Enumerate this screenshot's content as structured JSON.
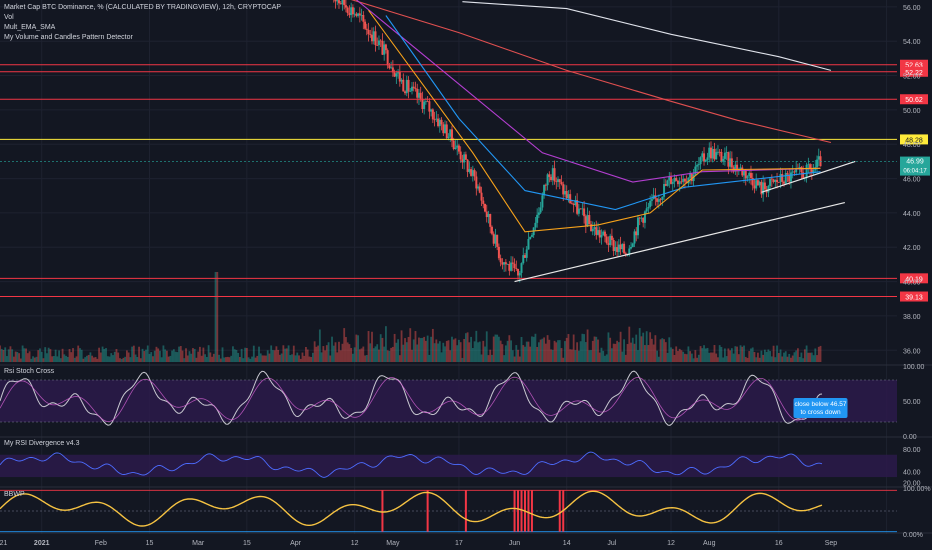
{
  "header": {
    "symbol_line": "Market Cap BTC Dominance, % (CALCULATED BY TRADINGVIEW), 12h, CRYPTOCAP",
    "indicators": [
      "Vol",
      "Mult_EMA_SMA",
      "My Volume and Candles Pattern Detector"
    ]
  },
  "colors": {
    "background": "#131722",
    "grid": "#1e2230",
    "up": "#26a69a",
    "down": "#ef5350",
    "ema_orange": "#f7a21b",
    "ema_blue": "#2196f3",
    "ema_purple": "#b33ed0",
    "sma_red": "#e05050",
    "sma_white": "#e0e3eb",
    "level_red": "#f23645",
    "level_yellow": "#ffeb3b",
    "rsi_line": "#4d6cff",
    "stoch_line": "#c8c8d0",
    "panel_fill": "#2b1a4a"
  },
  "chart_data": [
    {
      "type": "candlestick",
      "title": "Market Cap BTC Dominance, % (CALCULATED BY TRADINGVIEW), 12h, CRYPTOCAP",
      "price_axis": [
        "56.00",
        "54.00",
        "52.00",
        "50.00",
        "48.00",
        "46.00",
        "44.00",
        "42.00",
        "40.00",
        "38.00",
        "36.00"
      ],
      "ylim": [
        35.2,
        56.4
      ],
      "time_axis": [
        "21",
        "2021",
        "Feb",
        "15",
        "Mar",
        "15",
        "Apr",
        "12",
        "May",
        "17",
        "Jun",
        "14",
        "Jul",
        "12",
        "Aug",
        "16",
        "Sep"
      ],
      "x_visible_start": "2020-12-20",
      "x_visible_end": "2021-09-04",
      "last_close": 46.99,
      "countdown": "06:04:17",
      "price_series_anchors": [
        [
          "2021-03-25",
          56.8
        ],
        [
          "2021-04-01",
          55.7
        ],
        [
          "2021-04-08",
          53.9
        ],
        [
          "2021-04-15",
          51.5
        ],
        [
          "2021-04-22",
          50.2
        ],
        [
          "2021-04-29",
          48.3
        ],
        [
          "2021-05-06",
          45.8
        ],
        [
          "2021-05-13",
          41.4
        ],
        [
          "2021-05-18",
          40.3
        ],
        [
          "2021-05-21",
          42.5
        ],
        [
          "2021-05-24",
          44.2
        ],
        [
          "2021-05-27",
          46.5
        ],
        [
          "2021-06-01",
          45.0
        ],
        [
          "2021-06-08",
          43.2
        ],
        [
          "2021-06-15",
          42.0
        ],
        [
          "2021-06-18",
          41.7
        ],
        [
          "2021-06-22",
          43.6
        ],
        [
          "2021-06-27",
          44.9
        ],
        [
          "2021-07-01",
          46.0
        ],
        [
          "2021-07-07",
          46.2
        ],
        [
          "2021-07-12",
          47.6
        ],
        [
          "2021-07-17",
          47.1
        ],
        [
          "2021-07-24",
          46.1
        ],
        [
          "2021-07-27",
          45.4
        ],
        [
          "2021-08-01",
          45.9
        ],
        [
          "2021-08-06",
          46.2
        ],
        [
          "2021-08-11",
          46.5
        ],
        [
          "2021-08-13",
          46.99
        ]
      ],
      "horizontal_levels": [
        {
          "value": 52.63,
          "label": "52.63",
          "color": "#f23645"
        },
        {
          "value": 52.22,
          "label": "52.22",
          "color": "#f23645"
        },
        {
          "value": 50.62,
          "label": "50.62",
          "color": "#f23645"
        },
        {
          "value": 48.28,
          "label": "48.28",
          "color": "#ffeb3b"
        },
        {
          "value": 40.19,
          "label": "40.19",
          "color": "#f23645"
        },
        {
          "value": 39.13,
          "label": "39.13",
          "color": "#f23645"
        }
      ],
      "trendlines": [
        {
          "from": [
            "2021-05-17",
            40.0
          ],
          "to": [
            "2021-08-20",
            44.6
          ]
        },
        {
          "from": [
            "2021-07-27",
            45.2
          ],
          "to": [
            "2021-08-23",
            47.0
          ]
        }
      ],
      "moving_averages": [
        {
          "color": "#e0e3eb",
          "points": [
            [
              "2021-05-02",
              56.3
            ],
            [
              "2021-06-01",
              55.9
            ],
            [
              "2021-07-01",
              54.4
            ],
            [
              "2021-08-01",
              53.1
            ],
            [
              "2021-08-16",
              52.3
            ]
          ]
        },
        {
          "color": "#e05050",
          "points": [
            [
              "2021-03-25",
              56.8
            ],
            [
              "2021-05-01",
              54.5
            ],
            [
              "2021-06-01",
              52.3
            ],
            [
              "2021-07-01",
              50.5
            ],
            [
              "2021-07-20",
              49.4
            ],
            [
              "2021-08-16",
              48.1
            ]
          ]
        },
        {
          "color": "#b33ed0",
          "points": [
            [
              "2021-04-01",
              56.5
            ],
            [
              "2021-05-01",
              51.5
            ],
            [
              "2021-05-25",
              47.5
            ],
            [
              "2021-06-20",
              45.8
            ],
            [
              "2021-07-10",
              46.4
            ],
            [
              "2021-08-13",
              46.6
            ]
          ]
        },
        {
          "color": "#2196f3",
          "points": [
            [
              "2021-04-10",
              55.5
            ],
            [
              "2021-05-01",
              49.5
            ],
            [
              "2021-05-20",
              45.3
            ],
            [
              "2021-06-15",
              44.2
            ],
            [
              "2021-07-05",
              45.5
            ],
            [
              "2021-08-13",
              46.4
            ]
          ]
        },
        {
          "color": "#f7a21b",
          "points": [
            [
              "2021-04-05",
              55.8
            ],
            [
              "2021-05-05",
              47.5
            ],
            [
              "2021-05-20",
              42.9
            ],
            [
              "2021-06-10",
              43.3
            ],
            [
              "2021-06-25",
              44.0
            ],
            [
              "2021-07-10",
              46.5
            ],
            [
              "2021-08-13",
              46.6
            ]
          ]
        }
      ],
      "volume_spike": {
        "date": "2021-02-20",
        "relative_height": 1.0
      }
    },
    {
      "type": "line",
      "title": "Rsi Stoch Cross",
      "yticks": [
        "100.00",
        "50.00",
        "0.00"
      ],
      "ylim": [
        0,
        100
      ],
      "band": [
        20,
        80
      ],
      "annotation": {
        "text_lines": [
          "close below 46.57",
          "to cross down"
        ],
        "at_date": "2021-08-13"
      }
    },
    {
      "type": "line",
      "title": "My RSI Divergence v4.3",
      "yticks": [
        "80.00",
        "40.00",
        "20.00"
      ],
      "ylim": [
        14,
        100
      ],
      "band": [
        30,
        70
      ]
    },
    {
      "type": "line",
      "title": "BBWP",
      "yticks": [
        "100.00%",
        "0.00%"
      ],
      "ylim": [
        0,
        100
      ],
      "signal_bars": [
        "2021-04-09",
        "2021-04-22",
        "2021-05-03",
        "2021-05-17",
        "2021-05-18",
        "2021-05-19",
        "2021-05-20",
        "2021-05-21",
        "2021-05-22",
        "2021-05-30",
        "2021-05-31"
      ]
    }
  ]
}
